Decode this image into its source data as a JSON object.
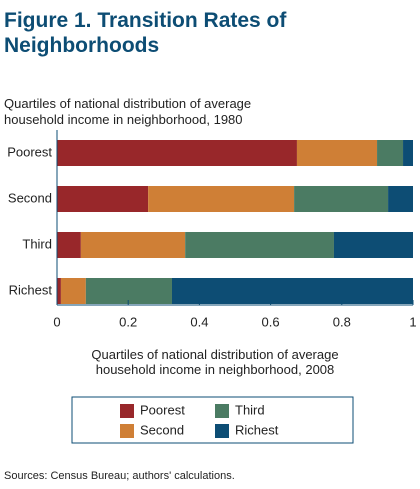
{
  "chart_data": {
    "type": "stacked-bar-horizontal",
    "title": "Figure 1. Transition Rates of Neighborhoods",
    "ylabel": "Quartiles of national distribution of average household income in neighborhood, 1980",
    "xlabel": "Quartiles of national distribution of average household income in neighborhood, 2008",
    "categories": [
      "Poorest",
      "Second",
      "Third",
      "Richest"
    ],
    "series": [
      {
        "name": "Poorest",
        "color": "#98272a",
        "values": [
          0.674,
          0.256,
          0.067,
          0.011
        ]
      },
      {
        "name": "Second",
        "color": "#cf7f36",
        "values": [
          0.225,
          0.41,
          0.293,
          0.07
        ]
      },
      {
        "name": "Third",
        "color": "#4b7b63",
        "values": [
          0.073,
          0.264,
          0.418,
          0.242
        ]
      },
      {
        "name": "Richest",
        "color": "#0d4d74",
        "values": [
          0.028,
          0.07,
          0.222,
          0.677
        ]
      }
    ],
    "xlim": [
      0,
      1
    ],
    "xticks": [
      0,
      0.2,
      0.4,
      0.6,
      0.8,
      1
    ],
    "source": "Sources: Census Bureau; authors' calculations."
  }
}
